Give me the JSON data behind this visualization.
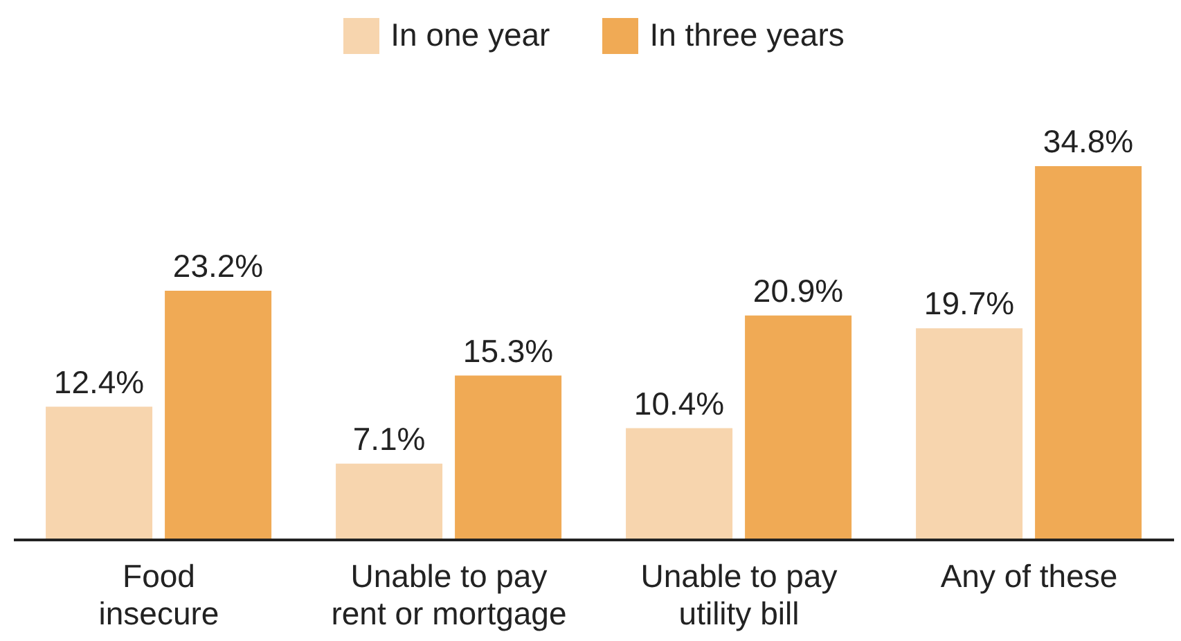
{
  "chart_data": {
    "type": "bar",
    "categories": [
      "Food\ninsecure",
      "Unable to pay\nrent or mortgage",
      "Unable to pay\nutility bill",
      "Any of these"
    ],
    "tick_labels": "x",
    "legend": "top",
    "series": [
      {
        "name": "In one year",
        "color": "#f7d5ae",
        "values": [
          12.4,
          7.1,
          10.4,
          19.7
        ],
        "value_labels": [
          "12.4%",
          "7.1%",
          "10.4%",
          "19.7%"
        ]
      },
      {
        "name": "In three years",
        "color": "#f0aa55",
        "values": [
          23.2,
          15.3,
          20.9,
          34.8
        ],
        "value_labels": [
          "23.2%",
          "15.3%",
          "20.9%",
          "34.8%"
        ]
      }
    ]
  }
}
